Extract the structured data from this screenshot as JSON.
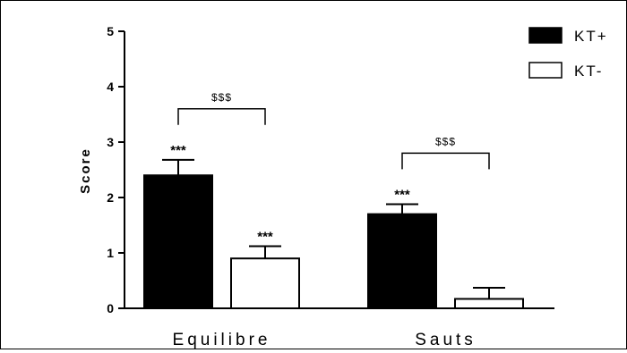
{
  "chart_data": {
    "type": "bar",
    "title": "",
    "xlabel": "",
    "ylabel": "Score",
    "ylim": [
      0,
      5
    ],
    "yticks": [
      "0",
      "1",
      "2",
      "3",
      "4",
      "5"
    ],
    "categories": [
      "Equilibre",
      "Sauts"
    ],
    "series": [
      {
        "name": "KT+",
        "fill": "#000000",
        "values": [
          2.4,
          1.7
        ],
        "errors": [
          0.28,
          0.18
        ],
        "annotations": [
          "***",
          "***"
        ]
      },
      {
        "name": "KT-",
        "fill": "#ffffff",
        "values": [
          0.9,
          0.17
        ],
        "errors": [
          0.22,
          0.2
        ],
        "annotations": [
          "***",
          ""
        ]
      }
    ],
    "comparisons": [
      {
        "category": "Equilibre",
        "label": "$$$",
        "bracket_y": 3.6
      },
      {
        "category": "Sauts",
        "label": "$$$",
        "bracket_y": 2.8
      }
    ],
    "legend_position": "top-right",
    "grid": false
  }
}
